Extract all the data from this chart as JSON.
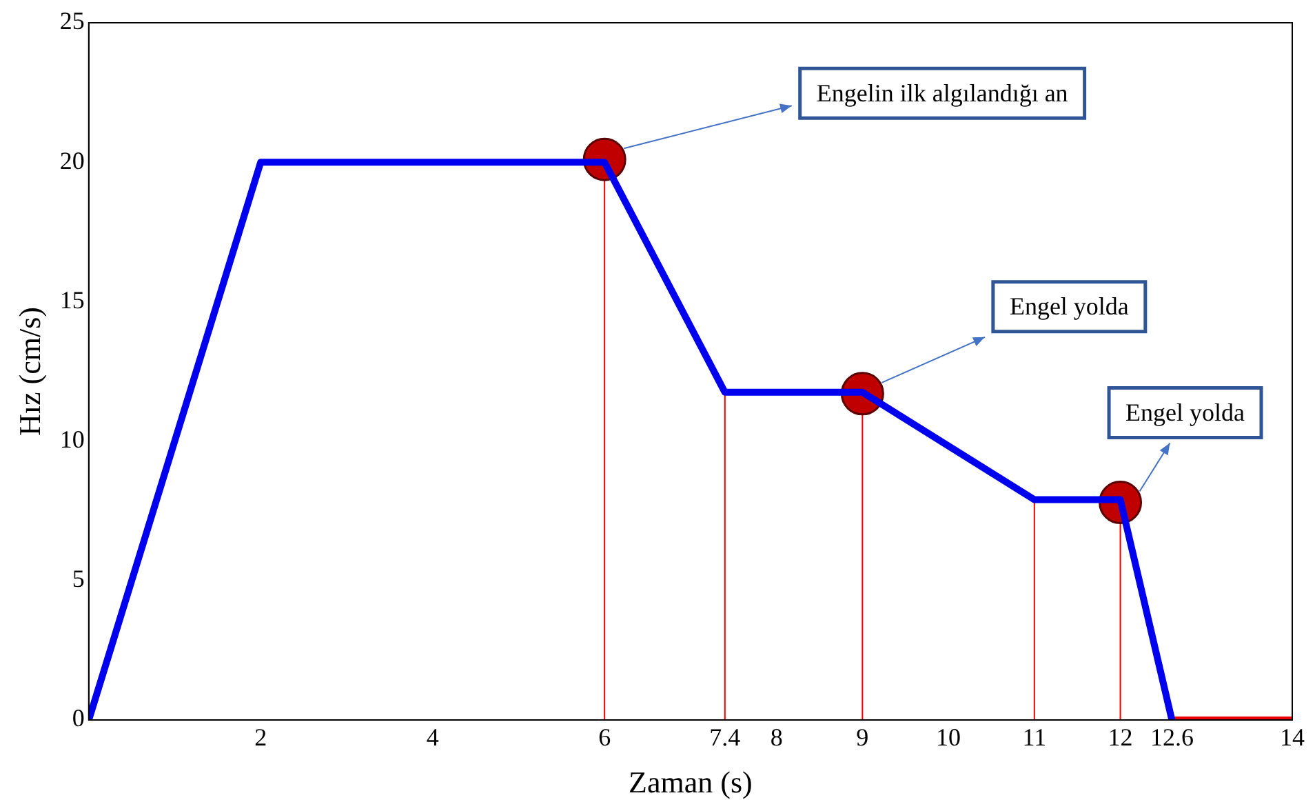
{
  "chart_data": {
    "type": "line",
    "xlabel": "Zaman (s)",
    "ylabel": "Hız (cm/s)",
    "xlim": [
      0,
      14
    ],
    "xticks": [
      2,
      4,
      6,
      7.4,
      8,
      9,
      10,
      11,
      12,
      12.6,
      14
    ],
    "ylim": [
      0,
      25
    ],
    "yticks": [
      0,
      5,
      10,
      15,
      20,
      25
    ],
    "grid": false,
    "legend": false,
    "line_style": "solid",
    "series": [
      {
        "type": "line",
        "color": "#0000ee",
        "marker": "none",
        "x": [
          0,
          2,
          6,
          7.4,
          9,
          11,
          12,
          12.6
        ],
        "values": [
          0,
          20,
          20,
          11.75,
          11.75,
          7.9,
          7.9,
          0
        ]
      },
      {
        "type": "line",
        "color": "#ee0000",
        "marker": "none",
        "x": [
          12.6,
          14
        ],
        "values": [
          0,
          0
        ]
      },
      {
        "type": "scatter",
        "color": "#c00000",
        "marker": "circle",
        "x": [
          6,
          9,
          12
        ],
        "values": [
          20.1,
          11.7,
          7.8
        ]
      }
    ],
    "ref_lines": [
      {
        "axis": "x",
        "value": 6,
        "color": "#ee0000"
      },
      {
        "axis": "x",
        "value": 7.4,
        "color": "#ee0000"
      },
      {
        "axis": "x",
        "value": 9,
        "color": "#ee0000"
      },
      {
        "axis": "x",
        "value": 11,
        "color": "#ee0000"
      },
      {
        "axis": "x",
        "value": 12,
        "color": "#ee0000"
      }
    ],
    "annotations": [
      "Engelin ilk algılandığı an",
      "Engel yolda",
      "Engel yolda"
    ]
  }
}
